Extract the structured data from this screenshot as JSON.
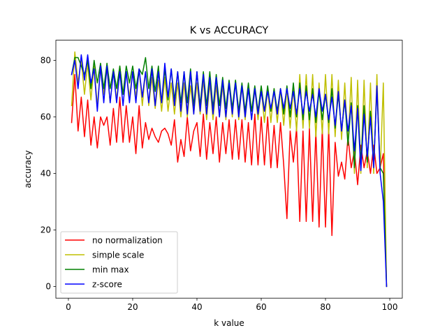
{
  "chart_data": {
    "type": "line",
    "title": "K vs ACCURACY",
    "xlabel": "k value",
    "ylabel": "accuracy",
    "xlim": [
      -3.9,
      103.9
    ],
    "ylim": [
      -4.15,
      87.15
    ],
    "xticks": [
      0,
      20,
      40,
      60,
      80,
      100
    ],
    "yticks": [
      0,
      20,
      40,
      60,
      80
    ],
    "grid": false,
    "legend_position": "lower-left",
    "x": [
      1,
      2,
      3,
      4,
      5,
      6,
      7,
      8,
      9,
      10,
      11,
      12,
      13,
      14,
      15,
      16,
      17,
      18,
      19,
      20,
      21,
      22,
      23,
      24,
      25,
      26,
      27,
      28,
      29,
      30,
      31,
      32,
      33,
      34,
      35,
      36,
      37,
      38,
      39,
      40,
      41,
      42,
      43,
      44,
      45,
      46,
      47,
      48,
      49,
      50,
      51,
      52,
      53,
      54,
      55,
      56,
      57,
      58,
      59,
      60,
      61,
      62,
      63,
      64,
      65,
      66,
      67,
      68,
      69,
      70,
      71,
      72,
      73,
      74,
      75,
      76,
      77,
      78,
      79,
      80,
      81,
      82,
      83,
      84,
      85,
      86,
      87,
      88,
      89,
      90,
      91,
      92,
      93,
      94,
      95,
      96,
      97,
      98,
      99
    ],
    "series": [
      {
        "name": "no normalization",
        "color": "#ff0000",
        "values": [
          58,
          75,
          55,
          67,
          53,
          66,
          50,
          60,
          49,
          60,
          57,
          60,
          50,
          63,
          51,
          67,
          51,
          64,
          51,
          60,
          47,
          64,
          49,
          58,
          52,
          56,
          53,
          51,
          55,
          56,
          54,
          50,
          59,
          44,
          52,
          46,
          60,
          48,
          55,
          58,
          46,
          61,
          45,
          58,
          47,
          60,
          44,
          58,
          47,
          59,
          45,
          59,
          45,
          59,
          44,
          58,
          43,
          61,
          43,
          60,
          43,
          60,
          42,
          57,
          42,
          58,
          43,
          24,
          55,
          44,
          56,
          23,
          55,
          23,
          56,
          23,
          55,
          21,
          56,
          21,
          56,
          18,
          51,
          39,
          44,
          38,
          53,
          42,
          48,
          36,
          50,
          42,
          48,
          40,
          50,
          40,
          42,
          47,
          0
        ]
      },
      {
        "name": "simple scale",
        "color": "#bfbf00",
        "values": [
          64,
          83,
          72,
          80,
          68,
          79,
          66,
          78,
          64,
          77,
          68,
          77,
          65,
          76,
          66,
          78,
          68,
          76,
          67,
          76,
          67,
          77,
          64,
          76,
          64,
          74,
          63,
          73,
          62,
          74,
          62,
          72,
          61,
          72,
          60,
          72,
          60,
          71,
          61,
          72,
          61,
          73,
          59,
          72,
          59,
          71,
          60,
          71,
          59,
          72,
          60,
          73,
          59,
          71,
          59,
          71,
          59,
          70,
          59,
          70,
          58,
          70,
          58,
          70,
          58,
          70,
          57,
          70,
          56,
          70,
          55,
          75,
          56,
          75,
          56,
          75,
          53,
          72,
          54,
          75,
          54,
          75,
          53,
          73,
          52,
          72,
          50,
          74,
          40,
          73,
          40,
          73,
          42,
          72,
          40,
          75,
          40,
          72,
          0
        ]
      },
      {
        "name": "min max",
        "color": "#008000",
        "values": [
          75,
          81,
          81,
          78,
          75,
          80,
          70,
          80,
          72,
          79,
          70,
          79,
          70,
          77,
          70,
          78,
          68,
          78,
          72,
          78,
          70,
          77,
          75,
          81,
          70,
          78,
          69,
          78,
          65,
          77,
          66,
          77,
          66,
          76,
          65,
          76,
          65,
          77,
          64,
          76,
          64,
          76,
          64,
          76,
          63,
          75,
          64,
          74,
          63,
          73,
          63,
          73,
          62,
          72,
          62,
          72,
          62,
          71,
          62,
          71,
          62,
          71,
          62,
          70,
          62,
          70,
          61,
          71,
          60,
          72,
          60,
          72,
          59,
          71,
          59,
          70,
          58,
          69,
          59,
          68,
          58,
          70,
          56,
          68,
          55,
          66,
          50,
          65,
          42,
          64,
          44,
          64,
          44,
          62,
          43,
          70,
          42,
          40,
          0
        ]
      },
      {
        "name": "z-score",
        "color": "#0000ff",
        "values": [
          75,
          80,
          70,
          82,
          73,
          82,
          72,
          77,
          62,
          78,
          65,
          78,
          65,
          76,
          65,
          76,
          64,
          76,
          65,
          76,
          65,
          77,
          67,
          76,
          65,
          77,
          64,
          76,
          65,
          79,
          67,
          77,
          64,
          76,
          62,
          76,
          61,
          76,
          61,
          76,
          62,
          75,
          61,
          74,
          61,
          74,
          60,
          73,
          60,
          72,
          61,
          72,
          60,
          71,
          60,
          70,
          59,
          70,
          61,
          69,
          62,
          69,
          63,
          69,
          61,
          70,
          63,
          70,
          63,
          69,
          61,
          70,
          61,
          69,
          62,
          68,
          60,
          70,
          62,
          68,
          59,
          67,
          57,
          69,
          55,
          66,
          55,
          64,
          48,
          63,
          41,
          61,
          46,
          60,
          42,
          71,
          40,
          30,
          0
        ]
      }
    ]
  }
}
